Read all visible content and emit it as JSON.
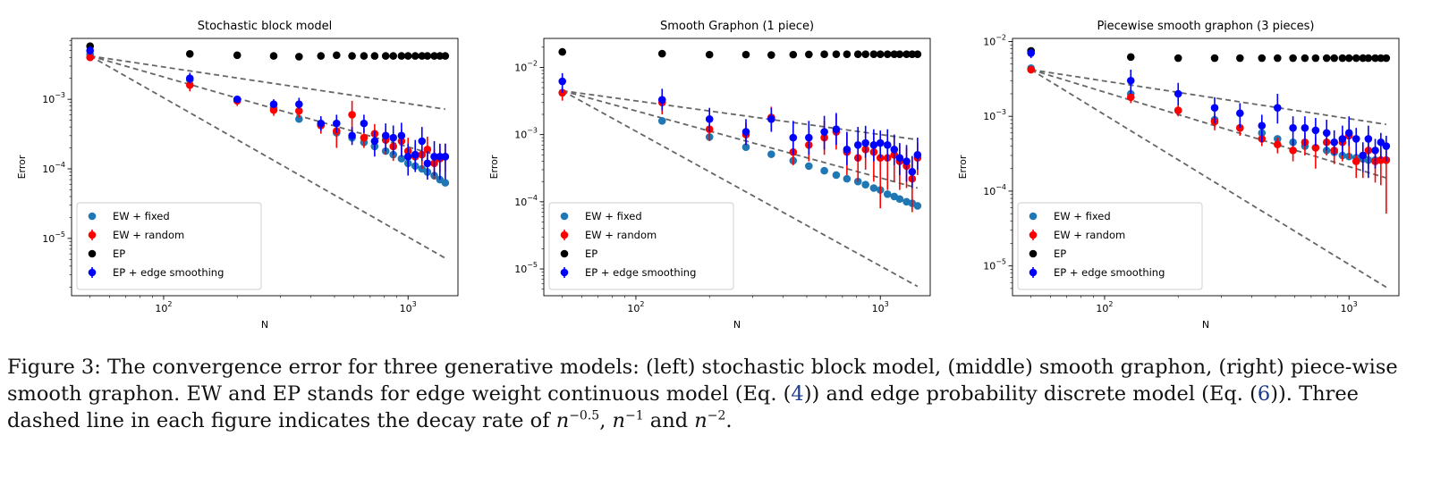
{
  "chart_data": [
    {
      "type": "scatter",
      "title": "Stochastic block model",
      "xlabel": "N",
      "ylabel": "Error",
      "xscale": "log",
      "yscale": "log",
      "xlim": [
        42,
        1600
      ],
      "ylim": [
        1.5e-06,
        0.0075
      ],
      "xticks": [
        {
          "v": 100,
          "b": "10",
          "e": "2"
        },
        {
          "v": 1000,
          "b": "10",
          "e": "3"
        }
      ],
      "yticks": [
        {
          "v": 1e-05,
          "b": "10",
          "e": "−5"
        },
        {
          "v": 0.0001,
          "b": "10",
          "e": "−4"
        },
        {
          "v": 0.001,
          "b": "10",
          "e": "−3"
        }
      ],
      "legend_position": "lower-left",
      "x": [
        50,
        128,
        200,
        282,
        358,
        440,
        510,
        590,
        660,
        730,
        810,
        870,
        940,
        1000,
        1070,
        1140,
        1200,
        1280,
        1350,
        1420
      ],
      "reference_lines": [
        {
          "slope": -0.5,
          "x": [
            50,
            1420
          ],
          "y": [
            0.0042,
            0.00072
          ]
        },
        {
          "slope": -1,
          "x": [
            50,
            1420
          ],
          "y": [
            0.0042,
            0.000145
          ]
        },
        {
          "slope": -2,
          "x": [
            50,
            1420
          ],
          "y": [
            0.0042,
            5.2e-06
          ]
        }
      ],
      "series": [
        {
          "name": "EW + fixed",
          "color": "#1f77b4",
          "marker": "circle",
          "y": [
            0.0044,
            0.0019,
            0.00098,
            0.00075,
            0.00052,
            0.00042,
            0.00033,
            0.00028,
            0.00024,
            0.00021,
            0.00018,
            0.00016,
            0.00014,
            0.00012,
            0.00011,
            0.0001,
            9e-05,
            8e-05,
            7e-05,
            6.3e-05
          ]
        },
        {
          "name": "EW + random",
          "color": "#ff0000",
          "marker": "circle",
          "error_bars": true,
          "y": [
            0.004,
            0.0016,
            0.00095,
            0.0007,
            0.00068,
            0.00042,
            0.00035,
            0.0006,
            0.00028,
            0.00032,
            0.00026,
            0.00021,
            0.00025,
            0.00018,
            0.00015,
            0.00016,
            0.00019,
            0.00012,
            0.00014,
            0.00015
          ],
          "err_low": [
            0.0003,
            0.0003,
            0.00015,
            0.00012,
            0.00014,
            0.0001,
            0.00015,
            0.00025,
            8e-05,
            0.00012,
            0.0001,
            8e-05,
            0.0001,
            7e-05,
            5e-05,
            6e-05,
            8e-05,
            5e-05,
            5e-05,
            6e-05
          ],
          "err_high": [
            0.0004,
            0.0004,
            0.00015,
            0.00015,
            0.00018,
            0.00012,
            0.00018,
            0.00035,
            0.0001,
            0.00012,
            0.00012,
            0.0001,
            0.00012,
            0.0001,
            8e-05,
            8e-05,
            0.0001,
            7e-05,
            7e-05,
            8e-05
          ]
        },
        {
          "name": "EP",
          "color": "#000000",
          "marker": "circle",
          "y": [
            0.0058,
            0.0045,
            0.0043,
            0.0042,
            0.0041,
            0.0042,
            0.0043,
            0.0042,
            0.0042,
            0.0042,
            0.0042,
            0.0042,
            0.0042,
            0.0042,
            0.0042,
            0.0042,
            0.0042,
            0.0042,
            0.0042,
            0.0042
          ]
        },
        {
          "name": "EP + edge smoothing",
          "color": "#0000ff",
          "marker": "circle",
          "error_bars": true,
          "y": [
            0.005,
            0.002,
            0.001,
            0.00085,
            0.00085,
            0.00045,
            0.00045,
            0.0003,
            0.00045,
            0.00025,
            0.0003,
            0.00028,
            0.0003,
            0.00015,
            0.00016,
            0.00025,
            0.00012,
            0.00015,
            0.00015,
            0.00015
          ],
          "err_low": [
            0.0006,
            0.0003,
            0.0001,
            0.0001,
            0.00012,
            0.0001,
            0.00012,
            8e-05,
            0.00012,
            0.0001,
            0.00012,
            0.00012,
            0.00015,
            7e-05,
            7e-05,
            0.00012,
            5e-05,
            7e-05,
            8e-05,
            8e-05
          ],
          "err_high": [
            0.0008,
            0.0004,
            0.00012,
            0.00015,
            0.0002,
            0.00012,
            0.00015,
            0.0001,
            0.00015,
            0.0001,
            0.00015,
            0.00014,
            0.00016,
            8e-05,
            0.0001,
            0.00015,
            6e-05,
            0.0001,
            8e-05,
            8e-05
          ]
        }
      ]
    },
    {
      "type": "scatter",
      "title": "Smooth Graphon (1 piece)",
      "xlabel": "N",
      "ylabel": "Error",
      "xscale": "log",
      "yscale": "log",
      "xlim": [
        42,
        1600
      ],
      "ylim": [
        4e-06,
        0.027
      ],
      "xticks": [
        {
          "v": 100,
          "b": "10",
          "e": "2"
        },
        {
          "v": 1000,
          "b": "10",
          "e": "3"
        }
      ],
      "yticks": [
        {
          "v": 1e-05,
          "b": "10",
          "e": "−5"
        },
        {
          "v": 0.0001,
          "b": "10",
          "e": "−4"
        },
        {
          "v": 0.001,
          "b": "10",
          "e": "−3"
        },
        {
          "v": 0.01,
          "b": "10",
          "e": "−2"
        }
      ],
      "legend_position": "lower-left",
      "x": [
        50,
        128,
        200,
        282,
        358,
        440,
        510,
        590,
        660,
        730,
        810,
        870,
        940,
        1000,
        1070,
        1140,
        1200,
        1280,
        1350,
        1420
      ],
      "reference_lines": [
        {
          "slope": -0.5,
          "x": [
            50,
            1420
          ],
          "y": [
            0.0045,
            0.00084
          ]
        },
        {
          "slope": -1,
          "x": [
            50,
            1420
          ],
          "y": [
            0.0045,
            0.00016
          ]
        },
        {
          "slope": -2,
          "x": [
            50,
            1420
          ],
          "y": [
            0.0045,
            5.5e-06
          ]
        }
      ],
      "series": [
        {
          "name": "EW + fixed",
          "color": "#1f77b4",
          "marker": "circle",
          "y": [
            0.0042,
            0.0016,
            0.00092,
            0.00065,
            0.00051,
            0.00041,
            0.00034,
            0.00029,
            0.00025,
            0.00022,
            0.0002,
            0.00018,
            0.00016,
            0.00015,
            0.00013,
            0.00012,
            0.00011,
            0.0001,
            9.5e-05,
            8.7e-05
          ]
        },
        {
          "name": "EW + random",
          "color": "#ff0000",
          "marker": "circle",
          "error_bars": true,
          "y": [
            0.0042,
            0.003,
            0.0012,
            0.001,
            0.0018,
            0.00055,
            0.0007,
            0.0009,
            0.0011,
            0.00055,
            0.00045,
            0.0006,
            0.00055,
            0.00045,
            0.00045,
            0.0005,
            0.0004,
            0.00034,
            0.00022,
            0.00045
          ],
          "err_low": [
            0.001,
            0.001,
            0.0004,
            0.0003,
            0.0007,
            0.0002,
            0.0003,
            0.0004,
            0.0005,
            0.0003,
            0.00025,
            0.0003,
            0.00035,
            0.00037,
            0.0003,
            0.0003,
            0.00025,
            0.00018,
            0.00015,
            0.0002
          ],
          "err_high": [
            0.001,
            0.001,
            0.0005,
            0.0005,
            0.0008,
            0.0003,
            0.0006,
            0.0007,
            0.0009,
            0.0005,
            0.0004,
            0.0005,
            0.0005,
            0.0004,
            0.0004,
            0.0004,
            0.0003,
            0.0003,
            0.0002,
            0.0003
          ]
        },
        {
          "name": "EP",
          "color": "#000000",
          "marker": "circle",
          "y": [
            0.017,
            0.016,
            0.0155,
            0.0155,
            0.0153,
            0.0155,
            0.0156,
            0.0157,
            0.0157,
            0.0157,
            0.0157,
            0.0157,
            0.0157,
            0.0157,
            0.0157,
            0.0157,
            0.0157,
            0.0157,
            0.0157,
            0.0157
          ]
        },
        {
          "name": "EP + edge smoothing",
          "color": "#0000ff",
          "marker": "circle",
          "error_bars": true,
          "y": [
            0.0062,
            0.0033,
            0.0017,
            0.0011,
            0.0017,
            0.0009,
            0.0009,
            0.0011,
            0.0012,
            0.0006,
            0.0007,
            0.00075,
            0.0007,
            0.00075,
            0.0007,
            0.0006,
            0.00045,
            0.0004,
            0.00028,
            0.0005
          ],
          "err_low": [
            0.002,
            0.001,
            0.0006,
            0.0004,
            0.0006,
            0.0004,
            0.0004,
            0.0005,
            0.0005,
            0.00025,
            0.0003,
            0.0003,
            0.0003,
            0.0003,
            0.0003,
            0.00025,
            0.0002,
            0.0002,
            0.00012,
            0.0002
          ],
          "err_high": [
            0.002,
            0.0015,
            0.0008,
            0.0006,
            0.0008,
            0.0007,
            0.0007,
            0.0008,
            0.0009,
            0.0005,
            0.0006,
            0.0006,
            0.0005,
            0.0004,
            0.0005,
            0.0004,
            0.0003,
            0.0003,
            0.0002,
            0.0004
          ]
        }
      ]
    },
    {
      "type": "scatter",
      "title": "Piecewise smooth graphon (3 pieces)",
      "xlabel": "N",
      "ylabel": "Error",
      "xscale": "log",
      "yscale": "log",
      "xlim": [
        42,
        1600
      ],
      "ylim": [
        4e-06,
        0.011
      ],
      "xticks": [
        {
          "v": 100,
          "b": "10",
          "e": "2"
        },
        {
          "v": 1000,
          "b": "10",
          "e": "3"
        }
      ],
      "yticks": [
        {
          "v": 1e-05,
          "b": "10",
          "e": "−5"
        },
        {
          "v": 0.0001,
          "b": "10",
          "e": "−4"
        },
        {
          "v": 0.001,
          "b": "10",
          "e": "−3"
        },
        {
          "v": 0.01,
          "b": "10",
          "e": "−2"
        }
      ],
      "legend_position": "lower-left",
      "x": [
        50,
        128,
        200,
        282,
        358,
        440,
        510,
        590,
        660,
        730,
        810,
        870,
        940,
        1000,
        1070,
        1140,
        1200,
        1280,
        1350,
        1420
      ],
      "reference_lines": [
        {
          "slope": -0.5,
          "x": [
            50,
            1420
          ],
          "y": [
            0.0042,
            0.00078
          ]
        },
        {
          "slope": -1,
          "x": [
            50,
            1420
          ],
          "y": [
            0.0042,
            0.00015
          ]
        },
        {
          "slope": -2,
          "x": [
            50,
            1420
          ],
          "y": [
            0.0042,
            5.2e-06
          ]
        }
      ],
      "series": [
        {
          "name": "EW + fixed",
          "color": "#1f77b4",
          "marker": "circle",
          "y": [
            0.0044,
            0.002,
            0.0012,
            0.0009,
            0.0007,
            0.0006,
            0.0005,
            0.00045,
            0.0004,
            0.00038,
            0.00035,
            0.00033,
            0.0003,
            0.00029,
            0.00028,
            0.00027,
            0.00026,
            0.00026,
            0.00026,
            0.00026
          ]
        },
        {
          "name": "EW + random",
          "color": "#ff0000",
          "marker": "circle",
          "error_bars": true,
          "y": [
            0.0042,
            0.0018,
            0.0012,
            0.00085,
            0.0007,
            0.0005,
            0.00042,
            0.00035,
            0.00045,
            0.00038,
            0.00045,
            0.00035,
            0.00045,
            0.00055,
            0.00025,
            0.0003,
            0.00035,
            0.00025,
            0.00026,
            0.00026
          ],
          "err_low": [
            0.0003,
            0.0003,
            0.0002,
            0.0002,
            0.00015,
            0.0001,
            0.0001,
            0.0001,
            0.00015,
            0.00018,
            0.00015,
            0.00012,
            0.0002,
            0.00028,
            0.0001,
            0.00015,
            0.00015,
            0.00012,
            0.00014,
            0.00021
          ],
          "err_high": [
            0.0003,
            0.0003,
            0.0002,
            0.0002,
            0.00015,
            0.0001,
            0.0001,
            0.0001,
            0.00015,
            0.00015,
            0.00015,
            0.00012,
            0.00015,
            0.0002,
            0.0001,
            0.00012,
            0.00012,
            0.0001,
            0.0001,
            0.0001
          ]
        },
        {
          "name": "EP",
          "color": "#000000",
          "marker": "circle",
          "y": [
            0.0075,
            0.0062,
            0.006,
            0.006,
            0.006,
            0.006,
            0.006,
            0.006,
            0.006,
            0.006,
            0.006,
            0.006,
            0.006,
            0.006,
            0.006,
            0.006,
            0.006,
            0.006,
            0.006,
            0.006
          ]
        },
        {
          "name": "EP + edge smoothing",
          "color": "#0000ff",
          "marker": "circle",
          "error_bars": true,
          "y": [
            0.007,
            0.003,
            0.002,
            0.0013,
            0.0011,
            0.00075,
            0.0013,
            0.0007,
            0.0007,
            0.00065,
            0.0006,
            0.00045,
            0.0005,
            0.0006,
            0.0005,
            0.0003,
            0.0005,
            0.00035,
            0.00045,
            0.0004
          ],
          "err_low": [
            0.001,
            0.001,
            0.0006,
            0.0005,
            0.0004,
            0.0003,
            0.0005,
            0.0003,
            0.0003,
            0.00025,
            0.00025,
            0.00015,
            0.0002,
            0.0002,
            0.0002,
            0.00012,
            0.00035,
            0.00015,
            0.00018,
            0.00015
          ],
          "err_high": [
            0.001,
            0.0012,
            0.0008,
            0.0005,
            0.0004,
            0.0003,
            0.0007,
            0.0003,
            0.0003,
            0.0003,
            0.0003,
            0.0002,
            0.00025,
            0.0004,
            0.0002,
            0.00015,
            0.00025,
            0.00015,
            0.00015,
            0.00015
          ]
        }
      ]
    }
  ],
  "caption": {
    "p1": "Figure 3: The convergence error for three generative models: (left) stochastic block model, (middle) smooth graphon, (right) piece-wise smooth graphon. EW and EP stands for edge weight continuous model (Eq. (",
    "ref1": "4",
    "p2": ")) and edge probability discrete model (Eq. (",
    "ref2": "6",
    "p3": ")). Three dashed line in each figure indicates the decay rate of ",
    "math1_base": "n",
    "math1_exp": "−0.5",
    "sep1": ", ",
    "math2_base": "n",
    "math2_exp": "−1",
    "and": " and ",
    "math3_base": "n",
    "math3_exp": "−2",
    "end": "."
  }
}
